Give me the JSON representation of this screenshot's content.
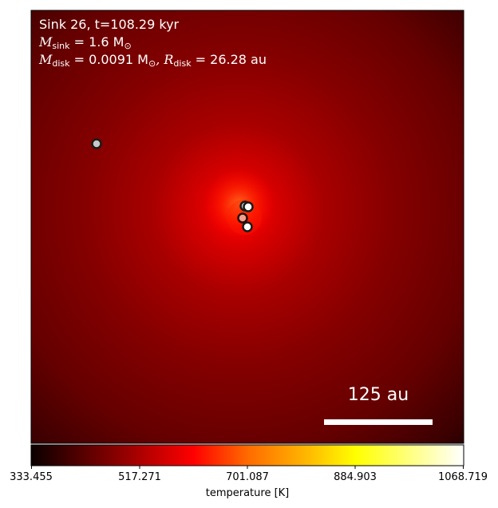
{
  "annotation": {
    "line1": "Sink 26, t=108.29 kyr",
    "msink_symbol": "M",
    "msink_sub": "sink",
    "msink_value": " = 1.6 M",
    "msink_sun": "⊙",
    "mdisk_symbol": "M",
    "mdisk_sub": "disk",
    "mdisk_value": " = 0.0091 M",
    "mdisk_sun": "⊙",
    "rdisk_symbol": ", R",
    "rdisk_sub": "disk",
    "rdisk_value": " = 26.28 au"
  },
  "scalebar": {
    "label": "125 au"
  },
  "colorbar": {
    "label": "temperature [K]",
    "ticks": [
      "333.455",
      "517.271",
      "701.087",
      "884.903",
      "1068.719"
    ],
    "min": 333.455,
    "max": 1068.719,
    "colormap": "hot"
  },
  "colors": {
    "sink_fill_grey": "#c8c8c8",
    "sink_fill_white": "#ffffff",
    "sink_fill_salmon": "#f0a090",
    "sink_edge": "#1a1a1a"
  }
}
